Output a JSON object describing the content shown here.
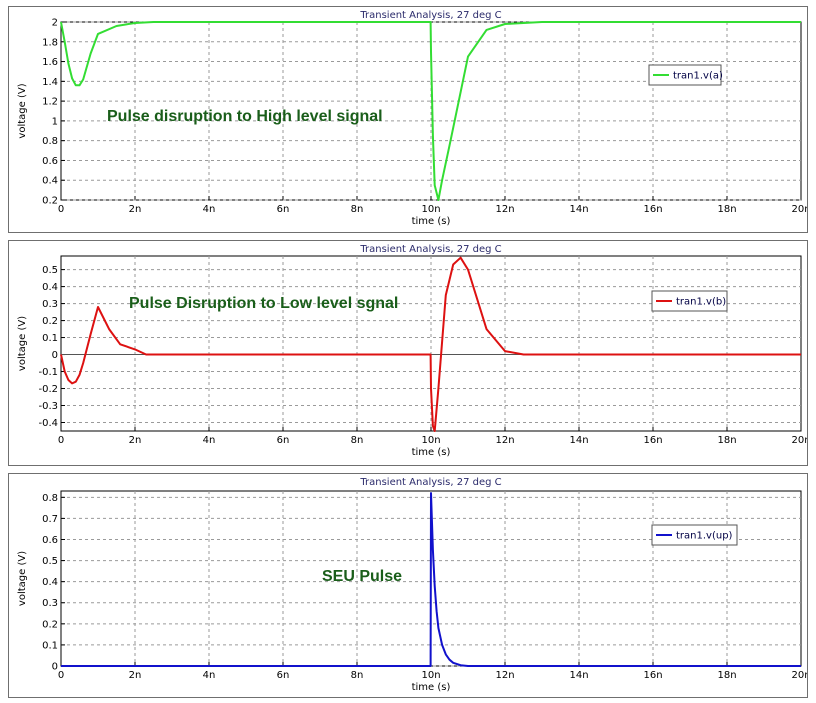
{
  "chart_data": [
    {
      "type": "line",
      "title": "Transient Analysis, 27 deg C",
      "xlabel": "time (s)",
      "ylabel": "voltage (V)",
      "xlim": [
        0,
        20
      ],
      "ylim": [
        0.2,
        2.0
      ],
      "xticks": [
        0,
        2,
        4,
        6,
        8,
        10,
        12,
        14,
        16,
        18,
        20
      ],
      "xticklabels": [
        "0",
        "2n",
        "4n",
        "6n",
        "8n",
        "10n",
        "12n",
        "14n",
        "16n",
        "18n",
        "20n"
      ],
      "yticks": [
        0.2,
        0.4,
        0.6,
        0.8,
        1,
        1.2,
        1.4,
        1.6,
        1.8,
        2
      ],
      "yticklabels": [
        "0.2",
        "0.4",
        "0.6",
        "0.8",
        "1",
        "1.2",
        "1.4",
        "1.6",
        "1.8",
        "2"
      ],
      "grid": true,
      "legend_position": "top-right",
      "annotation": "Pulse disruption to High level signal",
      "series": [
        {
          "name": "tran1.v(a)",
          "color": "#33dd33",
          "x": [
            0,
            0.1,
            0.2,
            0.3,
            0.4,
            0.5,
            0.6,
            0.7,
            0.8,
            1.0,
            1.5,
            2.0,
            2.5,
            9.99,
            10.0,
            10.05,
            10.1,
            10.2,
            10.3,
            10.5,
            11.0,
            11.5,
            12.0,
            12.5,
            13.0,
            20.0
          ],
          "y": [
            2.0,
            1.8,
            1.58,
            1.43,
            1.36,
            1.36,
            1.42,
            1.55,
            1.68,
            1.88,
            1.96,
            1.99,
            2.0,
            2.0,
            1.7,
            0.85,
            0.35,
            0.2,
            0.4,
            0.75,
            1.65,
            1.92,
            1.98,
            1.99,
            2.0,
            2.0
          ]
        }
      ]
    },
    {
      "type": "line",
      "title": "Transient Analysis, 27 deg C",
      "xlabel": "time (s)",
      "ylabel": "voltage (V)",
      "xlim": [
        0,
        20
      ],
      "ylim": [
        -0.45,
        0.58
      ],
      "xticks": [
        0,
        2,
        4,
        6,
        8,
        10,
        12,
        14,
        16,
        18,
        20
      ],
      "xticklabels": [
        "0",
        "2n",
        "4n",
        "6n",
        "8n",
        "10n",
        "12n",
        "14n",
        "16n",
        "18n",
        "20n"
      ],
      "yticks": [
        -0.4,
        -0.3,
        -0.2,
        -0.1,
        0,
        0.1,
        0.2,
        0.3,
        0.4,
        0.5
      ],
      "yticklabels": [
        "-0.4",
        "-0.3",
        "-0.2",
        "-0.1",
        "0",
        "0.1",
        "0.2",
        "0.3",
        "0.4",
        "0.5"
      ],
      "grid": true,
      "legend_position": "top-right",
      "annotation": "Pulse Disruption to Low level sgnal",
      "series": [
        {
          "name": "tran1.v(b)",
          "color": "#dd1111",
          "x": [
            0,
            0.1,
            0.2,
            0.3,
            0.4,
            0.5,
            0.6,
            0.8,
            1.0,
            1.3,
            1.6,
            2.0,
            2.3,
            9.99,
            10.0,
            10.05,
            10.1,
            10.2,
            10.4,
            10.6,
            10.8,
            11.0,
            11.5,
            12.0,
            12.5,
            13.0,
            20.0
          ],
          "y": [
            0,
            -0.1,
            -0.15,
            -0.17,
            -0.16,
            -0.12,
            -0.05,
            0.12,
            0.28,
            0.15,
            0.06,
            0.03,
            0.0,
            0.0,
            -0.2,
            -0.42,
            -0.45,
            -0.2,
            0.35,
            0.53,
            0.57,
            0.5,
            0.15,
            0.02,
            0.0,
            0.0,
            0.0
          ]
        }
      ]
    },
    {
      "type": "line",
      "title": "Transient Analysis, 27 deg C",
      "xlabel": "time (s)",
      "ylabel": "voltage (V)",
      "xlim": [
        0,
        20
      ],
      "ylim": [
        0,
        0.83
      ],
      "xticks": [
        0,
        2,
        4,
        6,
        8,
        10,
        12,
        14,
        16,
        18,
        20
      ],
      "xticklabels": [
        "0",
        "2n",
        "4n",
        "6n",
        "8n",
        "10n",
        "12n",
        "14n",
        "16n",
        "18n",
        "20n"
      ],
      "yticks": [
        0,
        0.1,
        0.2,
        0.3,
        0.4,
        0.5,
        0.6,
        0.7,
        0.8
      ],
      "yticklabels": [
        "0",
        "0.1",
        "0.2",
        "0.3",
        "0.4",
        "0.5",
        "0.6",
        "0.7",
        "0.8"
      ],
      "grid": true,
      "legend_position": "top-right",
      "annotation": "SEU Pulse",
      "series": [
        {
          "name": "tran1.v(up)",
          "color": "#1111cc",
          "x": [
            0,
            9.99,
            10.0,
            10.02,
            10.05,
            10.1,
            10.15,
            10.2,
            10.3,
            10.4,
            10.5,
            10.6,
            10.8,
            11.0,
            20.0
          ],
          "y": [
            0,
            0,
            0.82,
            0.72,
            0.55,
            0.38,
            0.26,
            0.18,
            0.1,
            0.055,
            0.03,
            0.015,
            0.004,
            0.0,
            0.0
          ]
        }
      ]
    }
  ]
}
